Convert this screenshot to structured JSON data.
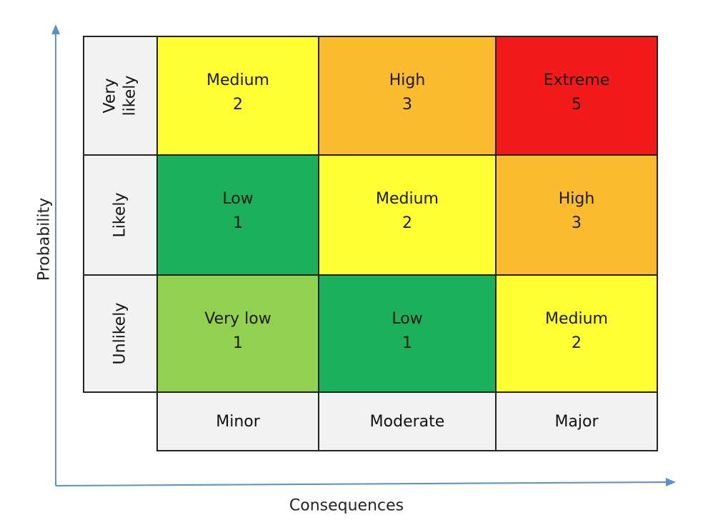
{
  "axes": {
    "y_title": "Probability",
    "x_title": "Consequences",
    "color": "#5b8fd0"
  },
  "probability_levels": [
    "Very\nlikely",
    "Likely",
    "Unlikely"
  ],
  "consequence_levels": [
    "Minor",
    "Moderate",
    "Major"
  ],
  "colors": {
    "very_low": "#92d050",
    "low": "#1db05a",
    "medium": "#ffff33",
    "high": "#fbbb2f",
    "extreme": "#f21a1a",
    "header": "#f2f2f2"
  },
  "matrix": [
    [
      {
        "label": "Medium",
        "score": "2",
        "color": "#ffff33"
      },
      {
        "label": "High",
        "score": "3",
        "color": "#fbbb2f"
      },
      {
        "label": "Extreme",
        "score": "5",
        "color": "#f21a1a"
      }
    ],
    [
      {
        "label": "Low",
        "score": "1",
        "color": "#1db05a"
      },
      {
        "label": "Medium",
        "score": "2",
        "color": "#ffff33"
      },
      {
        "label": "High",
        "score": "3",
        "color": "#fbbb2f"
      }
    ],
    [
      {
        "label": "Very low",
        "score": "1",
        "color": "#92d050"
      },
      {
        "label": "Low",
        "score": "1",
        "color": "#1db05a"
      },
      {
        "label": "Medium",
        "score": "2",
        "color": "#ffff33"
      }
    ]
  ]
}
